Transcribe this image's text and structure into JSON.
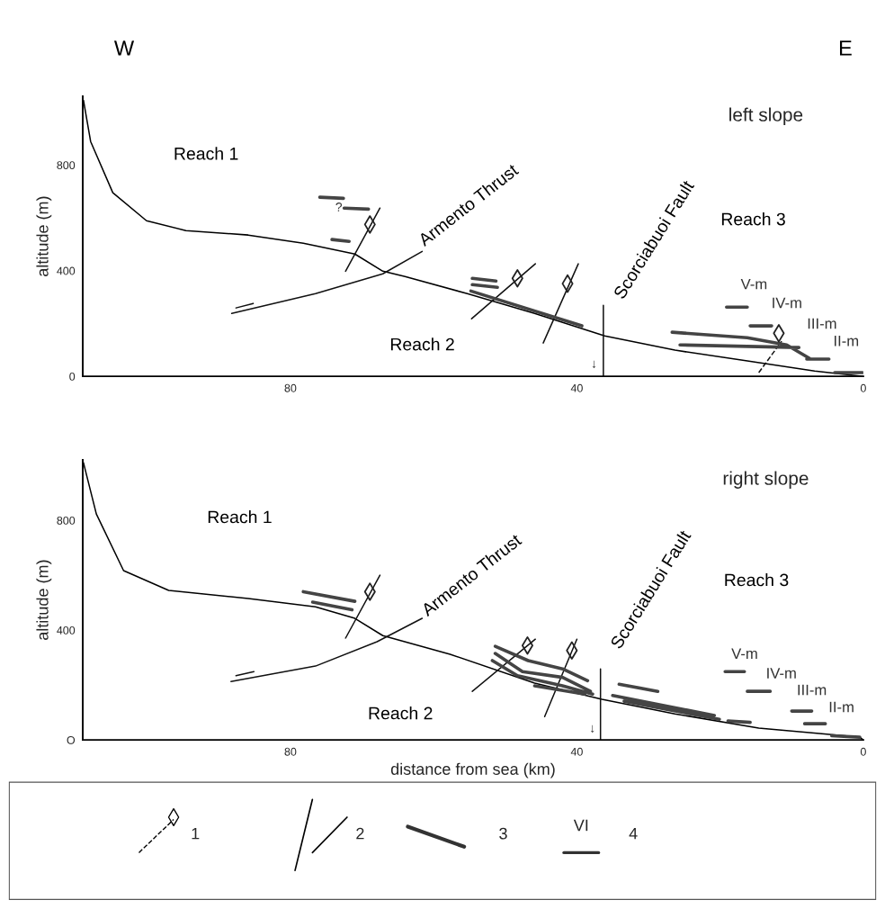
{
  "chart_data": [
    {
      "type": "line",
      "title": "left slope",
      "ylabel": "altitude (m)",
      "xlim": [
        109,
        0
      ],
      "ylim": [
        0,
        1060
      ],
      "xticks": [
        80,
        40,
        0
      ],
      "yticks": [
        0,
        400,
        800
      ],
      "grid": false,
      "legend": false,
      "series": [
        {
          "type": "line",
          "color": "#000000",
          "x": [
            108.9,
            107.9,
            104.8,
            100.1,
            94.6,
            85.9,
            78.2,
            71.0,
            67.1,
            64.0,
            55.3,
            45.9,
            36.1,
            26.3,
            16.2,
            6.8,
            0
          ],
          "values": [
            1045,
            889,
            695,
            589,
            552,
            535,
            504,
            463,
            398,
            378,
            313,
            238,
            153,
            99,
            58,
            20,
            0
          ]
        },
        {
          "type": "line",
          "color": "#111111",
          "x": [
            88.2,
            76.5,
            67.1,
            61.6
          ],
          "values": [
            238,
            313,
            388,
            473
          ]
        },
        {
          "type": "line",
          "color": "#111111",
          "x": [
            72.3,
            67.5,
            null,
            54.7,
            45.8,
            null,
            44.7,
            39.8,
            null,
            36.3,
            36.3,
            null,
            87.6,
            85.2
          ],
          "values": [
            398,
            637,
            null,
            218,
            426,
            null,
            126,
            426,
            null,
            0,
            269,
            null,
            259,
            276
          ]
        },
        {
          "type": "line",
          "color": "#111111",
          "line_style": "dashed",
          "x": [
            14.6,
            11.4
          ],
          "values": [
            14,
            133
          ]
        },
        {
          "type": "line",
          "color": "#444444",
          "x": [
            75.9,
            72.6,
            null,
            72.5,
            69.1,
            null,
            74.2,
            71.8,
            null,
            54.6,
            51.3,
            null,
            54.6,
            51.1,
            null,
            54.8,
            39.3,
            null,
            26.7,
            16.2,
            10.7,
            7.5,
            null,
            25.6,
            9.0,
            null,
            19.1,
            16.2,
            null,
            15.8,
            12.8,
            null,
            7.9,
            4.8,
            null,
            4.0,
            0.1
          ],
          "values": [
            678,
            674,
            null,
            637,
            633,
            null,
            518,
            511,
            null,
            371,
            361,
            null,
            347,
            337,
            null,
            323,
            191,
            null,
            167,
            146,
            119,
            68,
            null,
            119,
            109,
            null,
            262,
            262,
            null,
            191,
            191,
            null,
            65,
            65,
            null,
            14,
            14
          ]
        },
        {
          "type": "scatter",
          "color": "#222222",
          "marker": "diamond",
          "x": [
            68.9,
            48.3,
            41.3,
            11.8
          ],
          "values": [
            575,
            371,
            351,
            163
          ]
        }
      ],
      "annotations": [
        "W",
        "E",
        "Reach 1",
        "Reach 2",
        "Reach 3",
        "Armento Thrust",
        "Scorciabuoi Fault",
        "V-m",
        "IV-m",
        "III-m",
        "II-m",
        "?",
        "↓"
      ]
    },
    {
      "type": "line",
      "title": "right slope",
      "xlabel": "distance from sea (km)",
      "ylabel": "altitude (m)",
      "xlim": [
        109,
        0
      ],
      "ylim": [
        0,
        1020
      ],
      "xticks": [
        80,
        40,
        0
      ],
      "yticks": [
        {
          "value": 0,
          "label": "O"
        },
        400,
        800
      ],
      "grid": false,
      "legend": false,
      "series": [
        {
          "type": "line",
          "color": "#000000",
          "x": [
            108.9,
            107.1,
            103.3,
            97.0,
            85.9,
            76.5,
            71.0,
            67.1,
            57.7,
            45.9,
            36.5,
            26.3,
            14.6,
            0.5,
            0
          ],
          "values": [
            1010,
            823,
            617,
            545,
            515,
            485,
            443,
            380,
            312,
            207,
            148,
            95,
            43,
            10,
            0
          ]
        },
        {
          "type": "line",
          "color": "#111111",
          "x": [
            88.3,
            76.5,
            67.9,
            61.6
          ],
          "values": [
            213,
            269,
            358,
            443
          ]
        },
        {
          "type": "line",
          "color": "#111111",
          "x": [
            72.3,
            67.5,
            null,
            54.6,
            45.8,
            null,
            44.5,
            40.0,
            null,
            36.7,
            36.7,
            null,
            87.6,
            85.1
          ],
          "values": [
            371,
            600,
            null,
            177,
            367,
            null,
            85,
            367,
            null,
            0,
            259,
            null,
            234,
            249
          ]
        },
        {
          "type": "line",
          "color": "#444444",
          "x": [
            78.2,
            71.0,
            null,
            76.9,
            71.4,
            null,
            51.4,
            46.8,
            42.0,
            38.5,
            null,
            51.4,
            47.6,
            42.0,
            38.1,
            null,
            51.8,
            48.3,
            42.0,
            37.8,
            null,
            45.9,
            38.9,
            null,
            34.1,
            28.7,
            null,
            35.0,
            20.8,
            null,
            33.4,
            20.1,
            null,
            18.9,
            15.8,
            null,
            19.3,
            16.6,
            null,
            16.2,
            13.0,
            null,
            10.0,
            7.2,
            null,
            8.2,
            5.3,
            null,
            4.4,
            0.5
          ],
          "values": [
            540,
            505,
            null,
            502,
            474,
            null,
            341,
            289,
            259,
            216,
            null,
            315,
            249,
            228,
            177,
            null,
            289,
            234,
            197,
            167,
            null,
            197,
            167,
            null,
            203,
            177,
            null,
            162,
            89,
            null,
            141,
            75,
            null,
            69,
            64,
            null,
            249,
            249,
            null,
            177,
            177,
            null,
            105,
            105,
            null,
            59,
            59,
            null,
            15,
            10
          ]
        },
        {
          "type": "scatter",
          "color": "#222222",
          "marker": "diamond",
          "x": [
            68.9,
            46.9,
            40.7
          ],
          "values": [
            540,
            344,
            326
          ]
        }
      ],
      "annotations": [
        "Reach 1",
        "Reach 2",
        "Reach 3",
        "Armento Thrust",
        "Scorciabuoi Fault",
        "V-m",
        "IV-m",
        "III-m",
        "II-m",
        "↓"
      ]
    },
    {
      "type": "other",
      "annotations": [
        "1",
        "2",
        "3",
        "VI",
        "4"
      ]
    }
  ]
}
